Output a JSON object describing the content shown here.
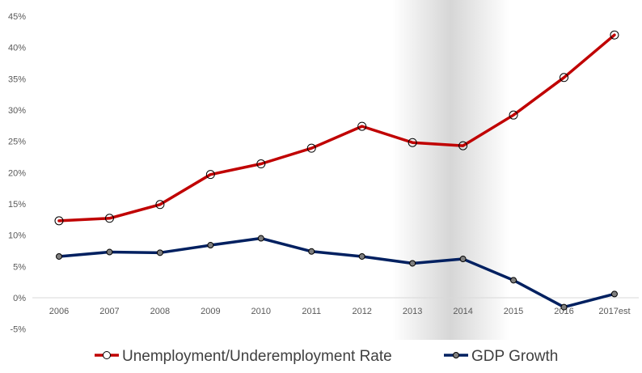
{
  "chart_data": {
    "type": "line",
    "title": "",
    "xlabel": "",
    "ylabel": "",
    "categories": [
      "2006",
      "2007",
      "2008",
      "2009",
      "2010",
      "2011",
      "2012",
      "2013",
      "2014",
      "2015",
      "2016",
      "2017est"
    ],
    "ylim": [
      -5,
      45
    ],
    "yticks": [
      "-5%",
      "0%",
      "5%",
      "10%",
      "15%",
      "20%",
      "25%",
      "30%",
      "35%",
      "40%",
      "45%"
    ],
    "grid": false,
    "legend_position": "bottom",
    "shaded_region": {
      "from": "2013",
      "to": "2014"
    },
    "series": [
      {
        "name": "Unemployment/Underemployment Rate",
        "color": "#C00000",
        "marker": "circle-open",
        "values": [
          12.3,
          12.7,
          14.9,
          19.7,
          21.4,
          23.9,
          27.4,
          24.8,
          24.3,
          29.2,
          35.2,
          42.0
        ]
      },
      {
        "name": "GDP Growth",
        "color": "#002060",
        "marker": "circle-filled",
        "values": [
          6.6,
          7.3,
          7.2,
          8.4,
          9.5,
          7.4,
          6.6,
          5.5,
          6.2,
          2.8,
          -1.5,
          0.6
        ]
      }
    ]
  }
}
